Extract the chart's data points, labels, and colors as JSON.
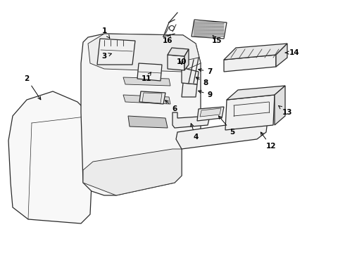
{
  "background_color": "#ffffff",
  "line_color": "#2a2a2a",
  "lw": 0.9,
  "figsize": [
    4.9,
    3.6
  ],
  "dpi": 100,
  "xlim": [
    0,
    490
  ],
  "ylim": [
    0,
    360
  ]
}
